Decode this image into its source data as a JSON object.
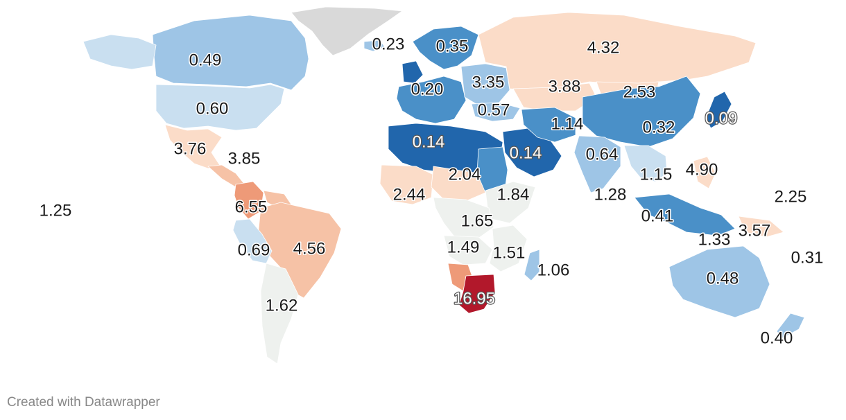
{
  "credit": "Created with Datawrapper",
  "colors": {
    "blue_dark": "#2166ac",
    "blue_mid": "#4a90c8",
    "blue_light": "#9ec5e6",
    "blue_pale": "#c9dff0",
    "neutral": "#eef1ee",
    "orange_pale": "#fbdcc8",
    "orange_light": "#f6c2a6",
    "orange_mid": "#ee9a78",
    "red_dark": "#b2182b",
    "no_data": "#d9d9d9"
  },
  "regions": [
    {
      "name": "greenland",
      "value": null,
      "color_key": "no_data"
    },
    {
      "name": "canada",
      "value": 0.49,
      "color_key": "blue_light"
    },
    {
      "name": "alaska",
      "value": 0.49,
      "color_key": "blue_pale"
    },
    {
      "name": "united-states",
      "value": 0.6,
      "color_key": "blue_pale"
    },
    {
      "name": "mexico",
      "value": 3.76,
      "color_key": "orange_pale"
    },
    {
      "name": "central-america",
      "value": 3.85,
      "color_key": "orange_light"
    },
    {
      "name": "colombia",
      "value": 6.55,
      "color_key": "orange_mid"
    },
    {
      "name": "venezuela",
      "value": null,
      "color_key": "orange_light"
    },
    {
      "name": "brazil",
      "value": 4.56,
      "color_key": "orange_light"
    },
    {
      "name": "peru",
      "value": 0.69,
      "color_key": "blue_pale"
    },
    {
      "name": "argentina",
      "value": 1.62,
      "color_key": "neutral"
    },
    {
      "name": "iceland",
      "value": 0.23,
      "color_key": "blue_light"
    },
    {
      "name": "scandinavia",
      "value": 0.35,
      "color_key": "blue_mid"
    },
    {
      "name": "uk",
      "value": null,
      "color_key": "blue_dark"
    },
    {
      "name": "western-europe",
      "value": 0.2,
      "color_key": "blue_mid"
    },
    {
      "name": "eastern-europe",
      "value": 3.35,
      "color_key": "blue_light"
    },
    {
      "name": "russia",
      "value": 4.32,
      "color_key": "orange_pale"
    },
    {
      "name": "kazakhstan",
      "value": 3.88,
      "color_key": "orange_pale"
    },
    {
      "name": "mongolia",
      "value": 2.53,
      "color_key": "orange_pale"
    },
    {
      "name": "turkey",
      "value": 0.57,
      "color_key": "blue_light"
    },
    {
      "name": "north-africa",
      "value": 0.14,
      "color_key": "blue_dark"
    },
    {
      "name": "arabia",
      "value": 0.14,
      "color_key": "blue_dark"
    },
    {
      "name": "iran",
      "value": 1.14,
      "color_key": "blue_mid"
    },
    {
      "name": "china",
      "value": 0.32,
      "color_key": "blue_mid"
    },
    {
      "name": "japan",
      "value": 0.09,
      "color_key": "blue_dark"
    },
    {
      "name": "india",
      "value": 0.64,
      "color_key": "blue_light"
    },
    {
      "name": "southeast-asia",
      "value": 1.15,
      "color_key": "blue_pale"
    },
    {
      "name": "philippines",
      "value": 4.9,
      "color_key": "orange_pale"
    },
    {
      "name": "west-africa",
      "value": 2.44,
      "color_key": "orange_pale"
    },
    {
      "name": "sahel",
      "value": 2.04,
      "color_key": "orange_pale"
    },
    {
      "name": "sudan",
      "value": null,
      "color_key": "blue_mid"
    },
    {
      "name": "east-africa",
      "value": 1.84,
      "color_key": "neutral"
    },
    {
      "name": "central-africa",
      "value": 1.65,
      "color_key": "neutral"
    },
    {
      "name": "southern-africa-north",
      "value": 1.49,
      "color_key": "neutral"
    },
    {
      "name": "mozambique",
      "value": 1.51,
      "color_key": "neutral"
    },
    {
      "name": "madagascar",
      "value": 1.06,
      "color_key": "blue_light"
    },
    {
      "name": "namibia",
      "value": null,
      "color_key": "orange_mid"
    },
    {
      "name": "south-africa",
      "value": 16.95,
      "color_key": "red_dark"
    },
    {
      "name": "indonesia",
      "value": 0.41,
      "color_key": "blue_mid"
    },
    {
      "name": "papua-new-guinea",
      "value": 3.57,
      "color_key": "orange_pale"
    },
    {
      "name": "australia",
      "value": 0.48,
      "color_key": "blue_light"
    },
    {
      "name": "new-zealand",
      "value": 0.4,
      "color_key": "blue_light"
    }
  ],
  "labels": [
    {
      "text": "0.23"
    },
    {
      "text": "0.35"
    },
    {
      "text": "4.32"
    },
    {
      "text": "0.49"
    },
    {
      "text": "0.20"
    },
    {
      "text": "3.35"
    },
    {
      "text": "3.88"
    },
    {
      "text": "2.53"
    },
    {
      "text": "0.60"
    },
    {
      "text": "0.57"
    },
    {
      "text": "1.14"
    },
    {
      "text": "0.09"
    },
    {
      "text": "0.32"
    },
    {
      "text": "0.14"
    },
    {
      "text": "0.14"
    },
    {
      "text": "3.76"
    },
    {
      "text": "3.85"
    },
    {
      "text": "0.64"
    },
    {
      "text": "2.04"
    },
    {
      "text": "4.90"
    },
    {
      "text": "1.15"
    },
    {
      "text": "2.44"
    },
    {
      "text": "1.84"
    },
    {
      "text": "1.28"
    },
    {
      "text": "2.25"
    },
    {
      "text": "6.55"
    },
    {
      "text": "1.25"
    },
    {
      "text": "1.65"
    },
    {
      "text": "0.41"
    },
    {
      "text": "3.57"
    },
    {
      "text": "1.33"
    },
    {
      "text": "0.69"
    },
    {
      "text": "4.56"
    },
    {
      "text": "1.49"
    },
    {
      "text": "1.51"
    },
    {
      "text": "0.31"
    },
    {
      "text": "1.06"
    },
    {
      "text": "0.48"
    },
    {
      "text": "16.95"
    },
    {
      "text": "1.62"
    },
    {
      "text": "0.40"
    }
  ]
}
